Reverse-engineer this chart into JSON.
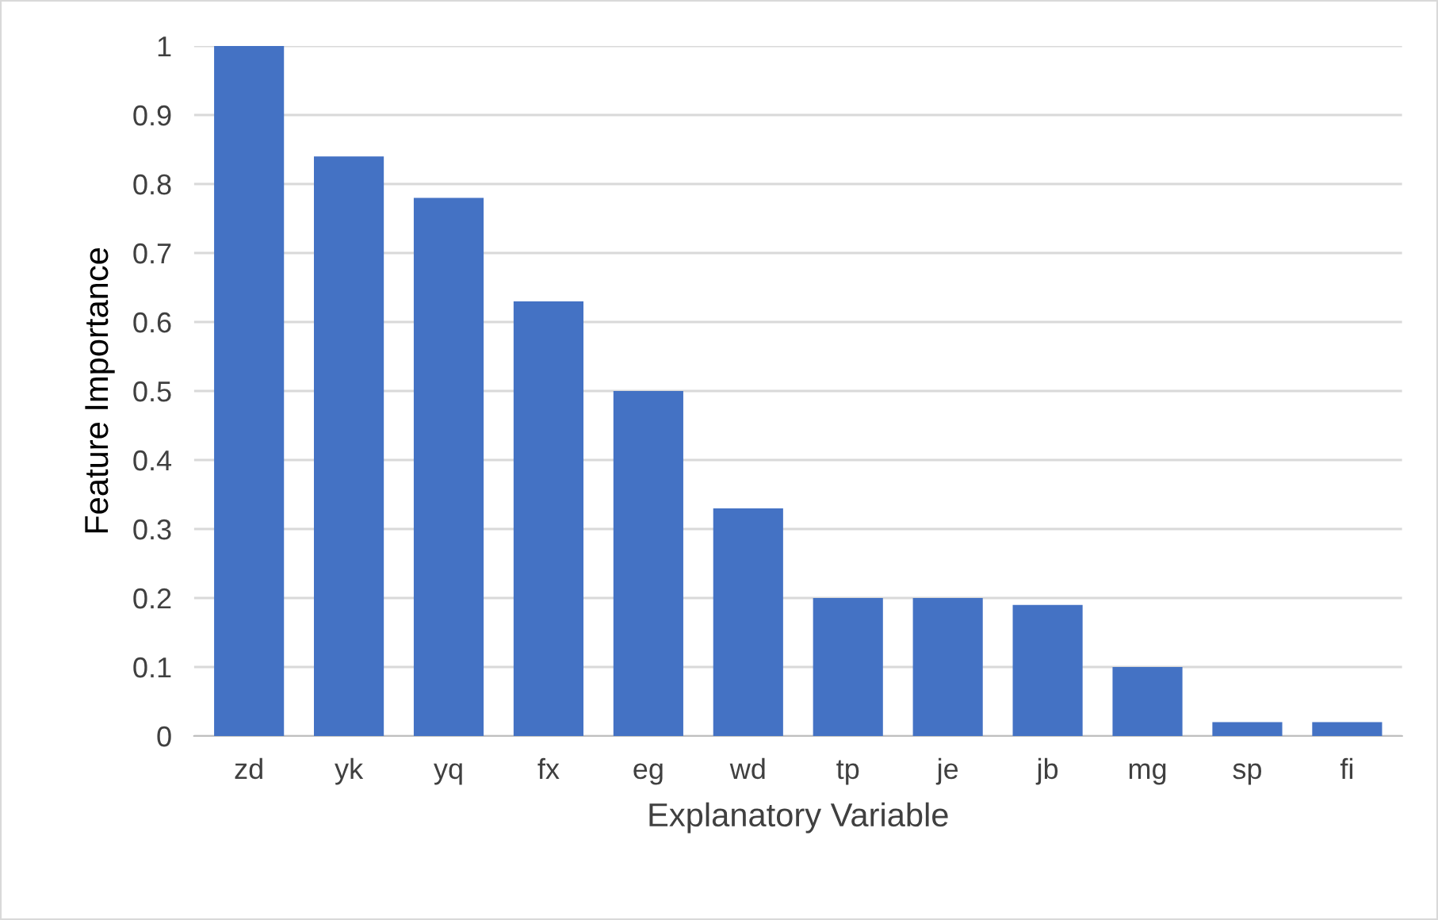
{
  "chart_data": {
    "type": "bar",
    "xlabel": "Explanatory Variable",
    "ylabel": "Feature Importance",
    "categories": [
      "zd",
      "yk",
      "yq",
      "fx",
      "eg",
      "wd",
      "tp",
      "je",
      "jb",
      "mg",
      "sp",
      "fi"
    ],
    "values": [
      1.0,
      0.84,
      0.78,
      0.63,
      0.5,
      0.33,
      0.2,
      0.2,
      0.19,
      0.1,
      0.02,
      0.02
    ],
    "color": "#4472c4",
    "ylim": [
      0,
      1
    ],
    "yticks": [
      0,
      0.1,
      0.2,
      0.3,
      0.4,
      0.5,
      0.6,
      0.7,
      0.8,
      0.9,
      1
    ],
    "grid": "y"
  }
}
